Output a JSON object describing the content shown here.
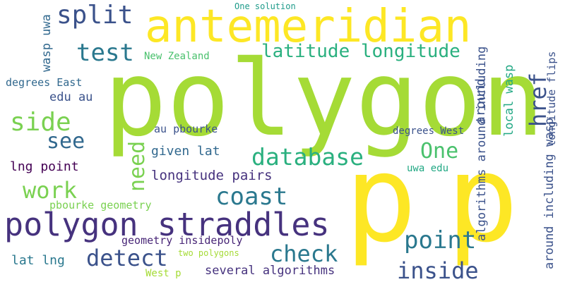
{
  "palette": {
    "yellow": "#fde725",
    "lime": "#a5db36",
    "green": "#7ad151",
    "mint": "#4ac16d",
    "teal": "#22a884",
    "seafoam": "#2ab07f",
    "cyan": "#1e9b8a",
    "steel": "#2a788e",
    "blue": "#31688e",
    "indigo": "#3b528b",
    "violet": "#46327e",
    "purple": "#482677",
    "dark": "#440154"
  },
  "words": {
    "antemeridian": "antemeridian",
    "polygon": "polygon",
    "p1": "p",
    "p2": "p",
    "split": "split",
    "test": "test",
    "latitude_longitude": "latitude longitude",
    "one_solution": "One solution",
    "new_zealand": "New Zealand",
    "wasp_uwa": "wasp uwa",
    "degrees_east": "degrees East",
    "edu_au": "edu au",
    "side": "side",
    "see": "see",
    "database": "database",
    "one": "One",
    "given_lat": "given lat",
    "au_pbourke": "au pbourke",
    "degrees_west": "degrees West",
    "lng_point": "lng point",
    "need": "need",
    "longitude_pairs": "longitude pairs",
    "work": "work",
    "coast": "coast",
    "pbourke_geometry": "pbourke geometry",
    "polygon_straddles": "polygon straddles",
    "point": "point",
    "geometry_insidepoly": "geometry insidepoly",
    "detect": "detect",
    "check": "check",
    "two_polygons": "two polygons",
    "lat_lng": "lat lng",
    "inside": "inside",
    "several_algorithms": "several algorithms",
    "west_p": "West p",
    "uwa_edu": "uwa edu",
    "href": "href",
    "local_wasp": "local wasp",
    "around": "around",
    "algorithms_around_including": "algorithms around including",
    "longitude_flips": "longitude flips",
    "around_including_wasp": "around including wasp"
  }
}
